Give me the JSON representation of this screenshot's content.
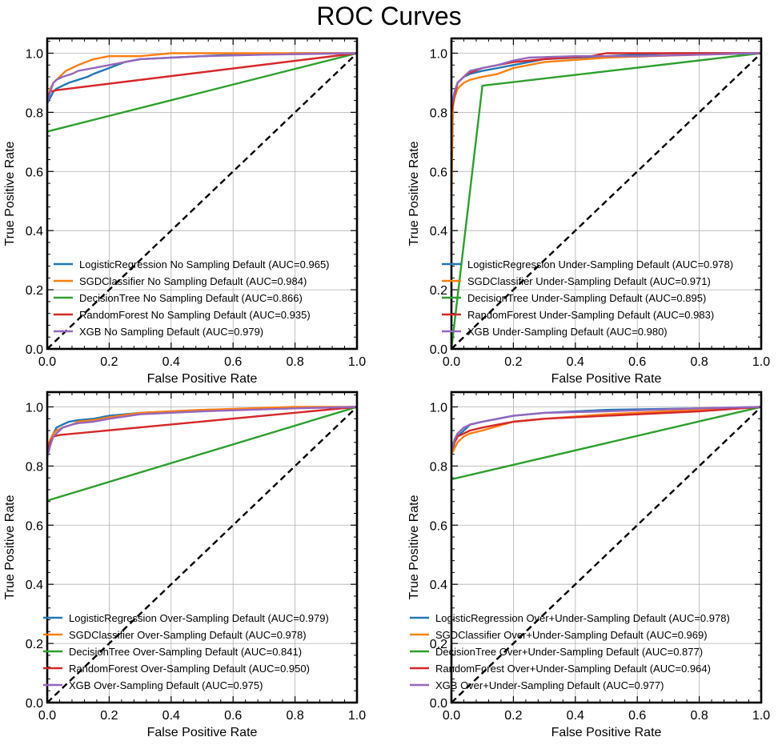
{
  "figure": {
    "title": "ROC Curves"
  },
  "colors": {
    "blue": "#1f77b4",
    "orange": "#ff7f0e",
    "green": "#2ca02c",
    "red": "#d62728",
    "purple": "#9467bd",
    "chance": "#000000",
    "grid": "#b0b0b0"
  },
  "chart_data": [
    {
      "type": "line",
      "xlabel": "False Positive Rate",
      "ylabel": "True Positive Rate",
      "xlim": [
        0,
        1
      ],
      "ylim": [
        0,
        1.05
      ],
      "xticks": [
        "0.0",
        "0.2",
        "0.4",
        "0.6",
        "0.8",
        "1.0"
      ],
      "yticks": [
        "0.0",
        "0.2",
        "0.4",
        "0.6",
        "0.8",
        "1.0"
      ],
      "grid": true,
      "legend": "lower-left",
      "series": [
        {
          "name": "LogisticRegression No Sampling Default (AUC=0.965)",
          "color": "blue",
          "x": [
            0,
            0.01,
            0.02,
            0.03,
            0.05,
            0.07,
            0.1,
            0.13,
            0.15,
            0.2,
            0.25,
            0.3,
            0.4,
            0.5,
            0.6,
            0.8,
            1.0
          ],
          "y": [
            0.83,
            0.85,
            0.87,
            0.88,
            0.89,
            0.9,
            0.91,
            0.92,
            0.93,
            0.95,
            0.97,
            0.98,
            0.985,
            0.99,
            0.995,
            1.0,
            1.0
          ]
        },
        {
          "name": "SGDClassifier No Sampling Default (AUC=0.984)",
          "color": "orange",
          "x": [
            0,
            0.01,
            0.02,
            0.04,
            0.06,
            0.08,
            0.1,
            0.15,
            0.2,
            0.3,
            0.4,
            0.6,
            0.8,
            1.0
          ],
          "y": [
            0.84,
            0.88,
            0.9,
            0.92,
            0.94,
            0.95,
            0.96,
            0.98,
            0.99,
            0.99,
            1.0,
            1.0,
            1.0,
            1.0
          ]
        },
        {
          "name": "DecisionTree No Sampling Default (AUC=0.866)",
          "color": "green",
          "x": [
            0,
            1.0
          ],
          "y": [
            0.735,
            1.0
          ]
        },
        {
          "name": "RandomForest No Sampling Default (AUC=0.935)",
          "color": "red",
          "x": [
            0,
            0.01,
            0.03,
            1.0
          ],
          "y": [
            0.85,
            0.87,
            0.875,
            1.0
          ]
        },
        {
          "name": "XGB No Sampling Default (AUC=0.979)",
          "color": "purple",
          "x": [
            0,
            0.01,
            0.02,
            0.03,
            0.05,
            0.08,
            0.1,
            0.15,
            0.2,
            0.3,
            0.5,
            0.7,
            1.0
          ],
          "y": [
            0.83,
            0.87,
            0.9,
            0.91,
            0.92,
            0.93,
            0.94,
            0.95,
            0.96,
            0.98,
            0.99,
            0.995,
            1.0
          ]
        },
        {
          "name": "",
          "color": "chance",
          "dashed": true,
          "x": [
            0,
            1
          ],
          "y": [
            0,
            1
          ]
        }
      ]
    },
    {
      "type": "line",
      "xlabel": "False Positive Rate",
      "ylabel": "True Positive Rate",
      "xlim": [
        0,
        1
      ],
      "ylim": [
        0,
        1.05
      ],
      "xticks": [
        "0.0",
        "0.2",
        "0.4",
        "0.6",
        "0.8",
        "1.0"
      ],
      "yticks": [
        "0.0",
        "0.2",
        "0.4",
        "0.6",
        "0.8",
        "1.0"
      ],
      "grid": true,
      "legend": "lower-left",
      "series": [
        {
          "name": "LogisticRegression Under-Sampling Default (AUC=0.978)",
          "color": "blue",
          "x": [
            0,
            0.01,
            0.02,
            0.04,
            0.06,
            0.1,
            0.15,
            0.2,
            0.3,
            0.5,
            0.7,
            1.0
          ],
          "y": [
            0.8,
            0.86,
            0.9,
            0.92,
            0.93,
            0.94,
            0.95,
            0.96,
            0.98,
            0.99,
            1.0,
            1.0
          ]
        },
        {
          "name": "SGDClassifier Under-Sampling Default (AUC=0.971)",
          "color": "orange",
          "x": [
            0,
            0.005,
            0.01,
            0.02,
            0.04,
            0.06,
            0.1,
            0.15,
            0.2,
            0.3,
            0.5,
            0.8,
            1.0
          ],
          "y": [
            0.5,
            0.82,
            0.85,
            0.88,
            0.9,
            0.91,
            0.92,
            0.93,
            0.95,
            0.97,
            0.985,
            0.995,
            1.0
          ]
        },
        {
          "name": "DecisionTree Under-Sampling Default (AUC=0.895)",
          "color": "green",
          "x": [
            0,
            0.1,
            1.0
          ],
          "y": [
            0,
            0.89,
            1.0
          ]
        },
        {
          "name": "RandomForest Under-Sampling Default (AUC=0.983)",
          "color": "red",
          "x": [
            0,
            0.01,
            0.02,
            0.05,
            0.1,
            0.2,
            0.3,
            0.45,
            0.5,
            0.7,
            1.0
          ],
          "y": [
            0.8,
            0.86,
            0.9,
            0.93,
            0.95,
            0.97,
            0.98,
            0.99,
            1.0,
            1.0,
            1.0
          ]
        },
        {
          "name": "XGB Under-Sampling Default (AUC=0.980)",
          "color": "purple",
          "x": [
            0,
            0.01,
            0.02,
            0.04,
            0.06,
            0.1,
            0.15,
            0.2,
            0.25,
            0.4,
            0.6,
            1.0
          ],
          "y": [
            0.82,
            0.87,
            0.9,
            0.92,
            0.94,
            0.95,
            0.96,
            0.975,
            0.985,
            0.99,
            0.99,
            1.0
          ]
        },
        {
          "name": "",
          "color": "chance",
          "dashed": true,
          "x": [
            0,
            1
          ],
          "y": [
            0,
            1
          ]
        }
      ]
    },
    {
      "type": "line",
      "xlabel": "False Positive Rate",
      "ylabel": "True Positive Rate",
      "xlim": [
        0,
        1
      ],
      "ylim": [
        0,
        1.05
      ],
      "xticks": [
        "0.0",
        "0.2",
        "0.4",
        "0.6",
        "0.8",
        "1.0"
      ],
      "yticks": [
        "0.0",
        "0.2",
        "0.4",
        "0.6",
        "0.8",
        "1.0"
      ],
      "grid": true,
      "legend": "lower-left",
      "series": [
        {
          "name": "LogisticRegression Over-Sampling Default (AUC=0.979)",
          "color": "blue",
          "x": [
            0,
            0.01,
            0.02,
            0.03,
            0.05,
            0.07,
            0.1,
            0.15,
            0.2,
            0.3,
            0.5,
            0.7,
            1.0
          ],
          "y": [
            0.85,
            0.88,
            0.91,
            0.93,
            0.94,
            0.95,
            0.955,
            0.96,
            0.97,
            0.98,
            0.99,
            0.995,
            1.0
          ]
        },
        {
          "name": "SGDClassifier Over-Sampling Default (AUC=0.978)",
          "color": "orange",
          "x": [
            0,
            0.01,
            0.02,
            0.03,
            0.05,
            0.08,
            0.1,
            0.15,
            0.2,
            0.3,
            0.5,
            0.8,
            1.0
          ],
          "y": [
            0.86,
            0.89,
            0.91,
            0.92,
            0.93,
            0.94,
            0.95,
            0.955,
            0.965,
            0.98,
            0.99,
            1.0,
            1.0
          ]
        },
        {
          "name": "DecisionTree Over-Sampling Default (AUC=0.841)",
          "color": "green",
          "x": [
            0,
            1.0
          ],
          "y": [
            0.683,
            1.0
          ]
        },
        {
          "name": "RandomForest Over-Sampling Default (AUC=0.950)",
          "color": "red",
          "x": [
            0,
            0.01,
            0.02,
            0.04,
            1.0
          ],
          "y": [
            0.85,
            0.88,
            0.9,
            0.905,
            1.0
          ]
        },
        {
          "name": "XGB Over-Sampling Default (AUC=0.975)",
          "color": "purple",
          "x": [
            0,
            0.01,
            0.02,
            0.03,
            0.05,
            0.08,
            0.1,
            0.15,
            0.2,
            0.3,
            0.5,
            0.8,
            1.0
          ],
          "y": [
            0.83,
            0.87,
            0.9,
            0.91,
            0.93,
            0.94,
            0.945,
            0.95,
            0.96,
            0.975,
            0.985,
            0.995,
            1.0
          ]
        },
        {
          "name": "",
          "color": "chance",
          "dashed": true,
          "x": [
            0,
            1
          ],
          "y": [
            0,
            1
          ]
        }
      ]
    },
    {
      "type": "line",
      "xlabel": "False Positive Rate",
      "ylabel": "True Positive Rate",
      "xlim": [
        0,
        1
      ],
      "ylim": [
        0,
        1.05
      ],
      "xticks": [
        "0.0",
        "0.2",
        "0.4",
        "0.6",
        "0.8",
        "1.0"
      ],
      "yticks": [
        "0.0",
        "0.2",
        "0.4",
        "0.6",
        "0.8",
        "1.0"
      ],
      "grid": true,
      "legend": "lower-left",
      "series": [
        {
          "name": "LogisticRegression Over+Under-Sampling Default (AUC=0.978)",
          "color": "blue",
          "x": [
            0,
            0.01,
            0.02,
            0.04,
            0.06,
            0.1,
            0.15,
            0.2,
            0.3,
            0.5,
            0.8,
            1.0
          ],
          "y": [
            0.84,
            0.88,
            0.9,
            0.92,
            0.94,
            0.95,
            0.96,
            0.97,
            0.98,
            0.99,
            0.995,
            1.0
          ]
        },
        {
          "name": "SGDClassifier Over+Under-Sampling Default (AUC=0.969)",
          "color": "orange",
          "x": [
            0,
            0.01,
            0.02,
            0.04,
            0.06,
            0.1,
            0.15,
            0.2,
            0.3,
            0.5,
            0.7,
            1.0
          ],
          "y": [
            0.84,
            0.86,
            0.88,
            0.9,
            0.91,
            0.92,
            0.935,
            0.95,
            0.96,
            0.975,
            0.985,
            1.0
          ]
        },
        {
          "name": "DecisionTree Over+Under-Sampling Default (AUC=0.877)",
          "color": "green",
          "x": [
            0,
            1.0
          ],
          "y": [
            0.755,
            1.0
          ]
        },
        {
          "name": "RandomForest Over+Under-Sampling Default (AUC=0.964)",
          "color": "red",
          "x": [
            0,
            0.01,
            0.02,
            0.04,
            0.06,
            0.1,
            0.15,
            0.2,
            0.3,
            0.5,
            0.8,
            1.0
          ],
          "y": [
            0.85,
            0.88,
            0.9,
            0.91,
            0.92,
            0.93,
            0.94,
            0.95,
            0.96,
            0.97,
            0.985,
            1.0
          ]
        },
        {
          "name": "XGB Over+Under-Sampling Default (AUC=0.977)",
          "color": "purple",
          "x": [
            0,
            0.01,
            0.02,
            0.04,
            0.06,
            0.1,
            0.15,
            0.2,
            0.3,
            0.5,
            0.8,
            1.0
          ],
          "y": [
            0.85,
            0.89,
            0.91,
            0.93,
            0.94,
            0.95,
            0.96,
            0.97,
            0.98,
            0.985,
            0.995,
            1.0
          ]
        },
        {
          "name": "",
          "color": "chance",
          "dashed": true,
          "x": [
            0,
            1
          ],
          "y": [
            0,
            1
          ]
        }
      ]
    }
  ]
}
